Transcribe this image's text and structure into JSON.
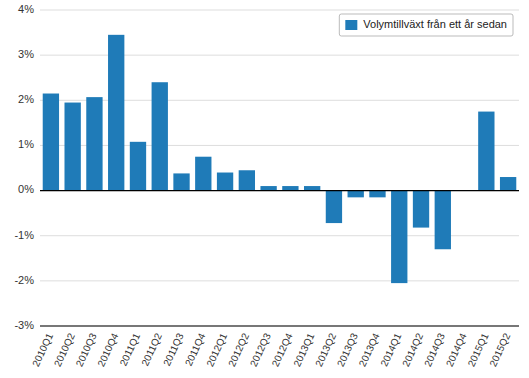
{
  "chart_data": {
    "type": "bar",
    "categories": [
      "2010Q1",
      "2010Q2",
      "2010Q3",
      "2010Q4",
      "2011Q1",
      "2011Q2",
      "2011Q3",
      "2011Q4",
      "2012Q1",
      "2012Q2",
      "2012Q3",
      "2012Q4",
      "2013Q1",
      "2013Q2",
      "2013Q3",
      "2013Q4",
      "2014Q1",
      "2014Q2",
      "2014Q3",
      "2014Q4",
      "2015Q1",
      "2015Q2"
    ],
    "series": [
      {
        "name": "Volymtillväxt från ett år sedan",
        "color": "#1f7bb8",
        "values": [
          2.15,
          1.95,
          2.07,
          3.45,
          1.08,
          2.4,
          0.38,
          0.75,
          0.4,
          0.45,
          0.1,
          0.1,
          0.1,
          -0.72,
          -0.15,
          -0.15,
          -2.05,
          -0.82,
          -1.3,
          0.0,
          1.75,
          0.3
        ]
      }
    ],
    "ylim": [
      -3,
      4
    ],
    "yticks": [
      {
        "value": -3,
        "label": "-3%"
      },
      {
        "value": -2,
        "label": "-2%"
      },
      {
        "value": -1,
        "label": "-1%"
      },
      {
        "value": 0,
        "label": "0%"
      },
      {
        "value": 1,
        "label": "1%"
      },
      {
        "value": 2,
        "label": "2%"
      },
      {
        "value": 3,
        "label": "3%"
      },
      {
        "value": 4,
        "label": "4%"
      }
    ],
    "grid": true,
    "legend": "upper right"
  }
}
